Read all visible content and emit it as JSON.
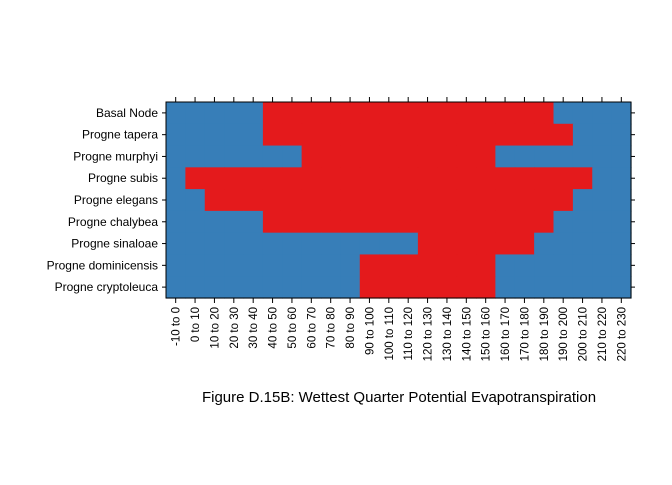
{
  "chart_data": {
    "type": "heatmap",
    "title": "Figure D.15B: Wettest Quarter Potential Evapotranspiration",
    "xlabel": "",
    "ylabel": "",
    "grid": false,
    "legend": "none",
    "colors": {
      "present": "#e41a1c",
      "absent": "#377eb8"
    },
    "categories": [
      "-10 to 0",
      "0 to 10",
      "10 to 20",
      "20 to 30",
      "30 to 40",
      "40 to 50",
      "50 to 60",
      "60 to 70",
      "70 to 80",
      "80 to 90",
      "90 to 100",
      "100 to 110",
      "110 to 120",
      "120 to 130",
      "130 to 140",
      "140 to 150",
      "150 to 160",
      "160 to 170",
      "170 to 180",
      "180 to 190",
      "190 to 200",
      "200 to 210",
      "210 to 220",
      "220 to 230"
    ],
    "rows": [
      {
        "label": "Basal Node",
        "present": [
          5,
          20
        ]
      },
      {
        "label": "Progne tapera",
        "present": [
          5,
          21
        ]
      },
      {
        "label": "Progne murphyi",
        "present": [
          7,
          17
        ]
      },
      {
        "label": "Progne subis",
        "present": [
          1,
          22
        ]
      },
      {
        "label": "Progne elegans",
        "present": [
          2,
          21
        ]
      },
      {
        "label": "Progne chalybea",
        "present": [
          5,
          20
        ]
      },
      {
        "label": "Progne sinaloae",
        "present": [
          13,
          19
        ]
      },
      {
        "label": "Progne dominicensis",
        "present": [
          10,
          17
        ]
      },
      {
        "label": "Progne cryptoleuca",
        "present": [
          10,
          17
        ]
      }
    ]
  }
}
